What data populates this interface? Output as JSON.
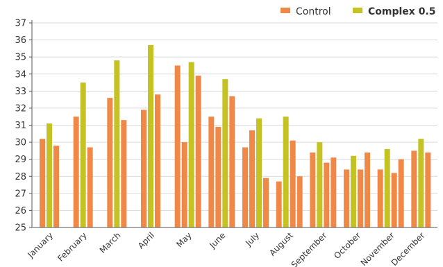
{
  "chart_data": {
    "type": "bar",
    "title": "",
    "xlabel": "",
    "ylabel": "",
    "ylim": [
      25,
      37
    ],
    "yticks": [
      25,
      26,
      27,
      28,
      29,
      30,
      31,
      32,
      33,
      34,
      35,
      36,
      37
    ],
    "grid": "horizontal",
    "legend_position": "top-right",
    "categories": [
      "January",
      "February",
      "March",
      "April",
      "May",
      "June",
      "July",
      "August",
      "September",
      "October",
      "November",
      "December"
    ],
    "bars_per_category": [
      [
        {
          "series": "Control",
          "value": 30.2
        },
        {
          "series": "Complex 0.5",
          "value": 31.1
        },
        {
          "series": "Control",
          "value": 29.8
        }
      ],
      [
        {
          "series": "Control",
          "value": 31.5
        },
        {
          "series": "Complex 0.5",
          "value": 33.5
        },
        {
          "series": "Control",
          "value": 29.7
        }
      ],
      [
        {
          "series": "Control",
          "value": 32.6
        },
        {
          "series": "Complex 0.5",
          "value": 34.8
        },
        {
          "series": "Control",
          "value": 31.3
        }
      ],
      [
        {
          "series": "Control",
          "value": 31.9
        },
        {
          "series": "Complex 0.5",
          "value": 35.7
        },
        {
          "series": "Control",
          "value": 32.8
        }
      ],
      [
        {
          "series": "Control",
          "value": 34.5
        },
        {
          "series": "Control",
          "value": 30.0
        },
        {
          "series": "Complex 0.5",
          "value": 34.7
        },
        {
          "series": "Control",
          "value": 33.9
        }
      ],
      [
        {
          "series": "Control",
          "value": 31.5
        },
        {
          "series": "Control",
          "value": 30.9
        },
        {
          "series": "Complex 0.5",
          "value": 33.7
        },
        {
          "series": "Control",
          "value": 32.7
        }
      ],
      [
        {
          "series": "Control",
          "value": 29.7
        },
        {
          "series": "Control",
          "value": 30.7
        },
        {
          "series": "Complex 0.5",
          "value": 31.4
        },
        {
          "series": "Control",
          "value": 27.9
        }
      ],
      [
        {
          "series": "Control",
          "value": 27.7
        },
        {
          "series": "Complex 0.5",
          "value": 31.5
        },
        {
          "series": "Control",
          "value": 30.1
        },
        {
          "series": "Control",
          "value": 28.0
        }
      ],
      [
        {
          "series": "Control",
          "value": 29.4
        },
        {
          "series": "Complex 0.5",
          "value": 30.0
        },
        {
          "series": "Control",
          "value": 28.8
        },
        {
          "series": "Control",
          "value": 29.1
        }
      ],
      [
        {
          "series": "Control",
          "value": 28.4
        },
        {
          "series": "Complex 0.5",
          "value": 29.2
        },
        {
          "series": "Control",
          "value": 28.4
        },
        {
          "series": "Control",
          "value": 29.4
        }
      ],
      [
        {
          "series": "Control",
          "value": 28.4
        },
        {
          "series": "Complex 0.5",
          "value": 29.6
        },
        {
          "series": "Control",
          "value": 28.2
        },
        {
          "series": "Control",
          "value": 29.0
        }
      ],
      [
        {
          "series": "Control",
          "value": 29.5
        },
        {
          "series": "Complex 0.5",
          "value": 30.2
        },
        {
          "series": "Control",
          "value": 29.4
        }
      ]
    ],
    "series": [
      {
        "name": "Control",
        "color": "#F08848"
      },
      {
        "name": "Complex 0.5",
        "color": "#C5C224"
      }
    ]
  },
  "legend": {
    "control_label": "Control",
    "complex_label": "Complex 0.5"
  },
  "colors": {
    "control": "#F08848",
    "complex": "#C5C224",
    "grid": "#d9d9d9",
    "axis": "#555555"
  }
}
